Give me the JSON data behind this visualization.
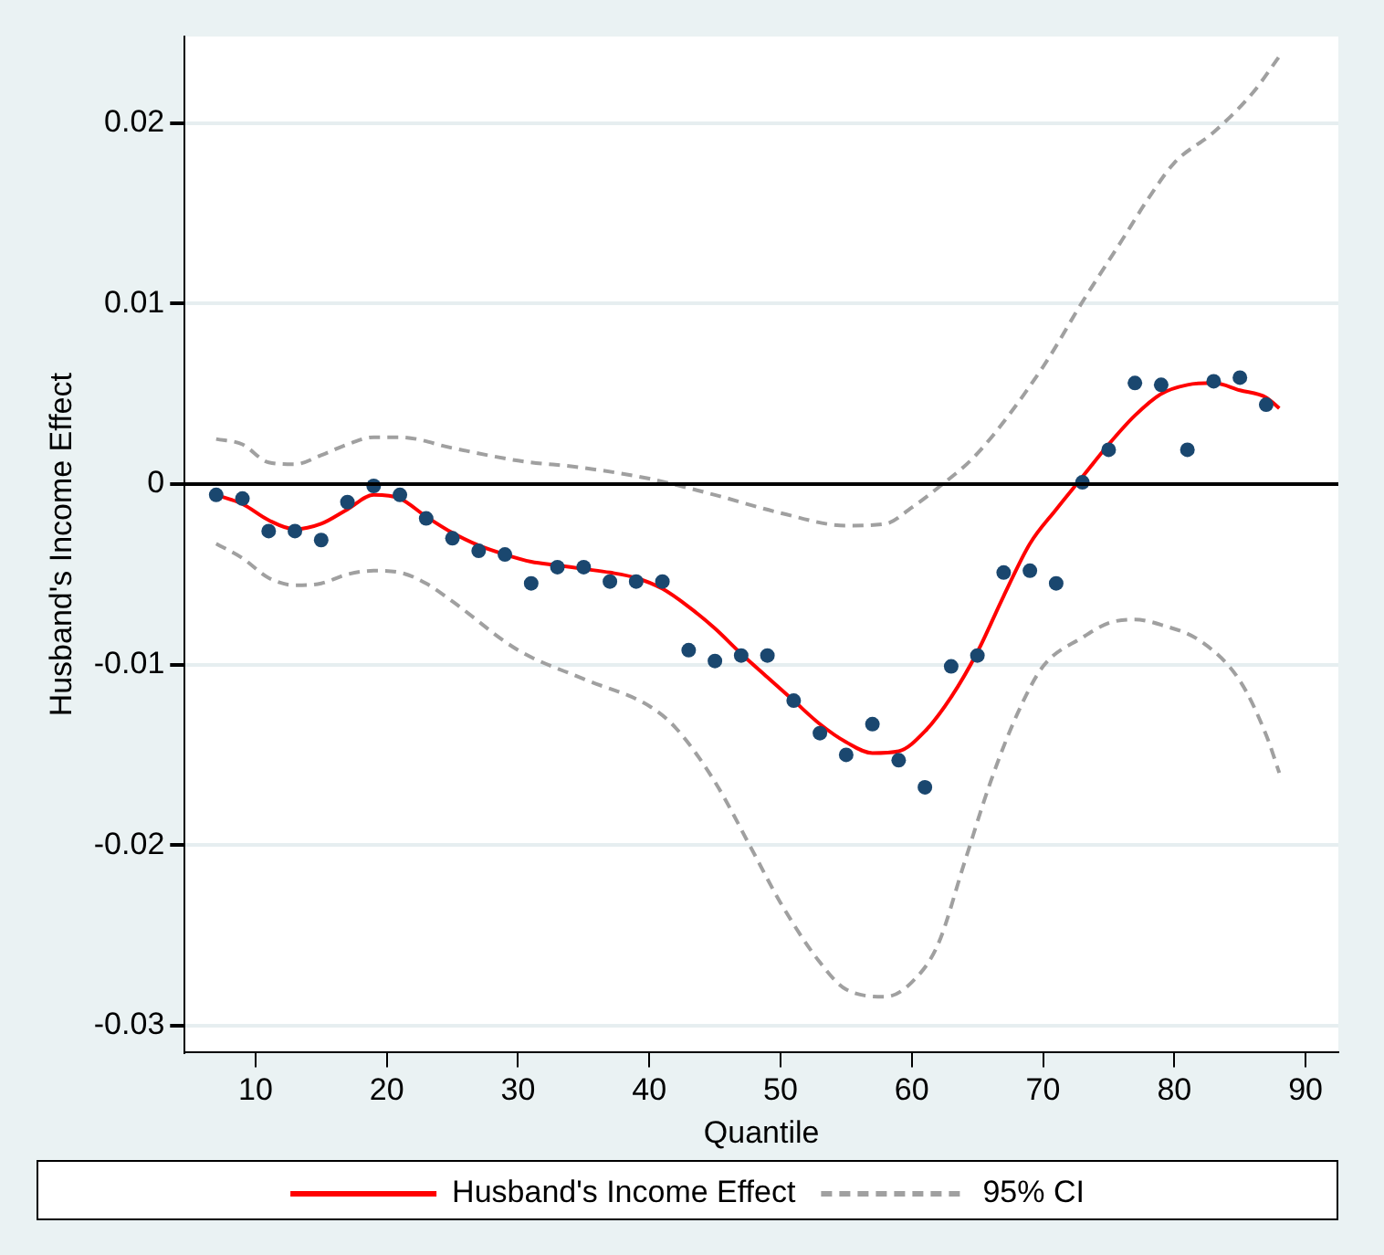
{
  "chart_data": {
    "type": "scatter",
    "xlabel": "Quantile",
    "ylabel": "Husband's Income Effect",
    "xlim": [
      4.6,
      92.5
    ],
    "xticks": [
      10,
      20,
      30,
      40,
      50,
      60,
      70,
      80,
      90
    ],
    "ylim": [
      -0.0315,
      0.0248
    ],
    "yticks": [
      -0.03,
      -0.02,
      -0.01,
      0,
      0.01,
      0.02
    ],
    "grid": "y",
    "legend": "bottom",
    "ref_lines": [
      {
        "axis": "y",
        "value": 0,
        "color": "#000000",
        "line_style": "solid"
      }
    ],
    "series": [
      {
        "type": "scatter",
        "color": "#1a476f",
        "marker": "circle",
        "x": [
          7,
          9,
          11,
          13,
          15,
          17,
          19,
          21,
          23,
          25,
          27,
          29,
          31,
          33,
          35,
          37,
          39,
          41,
          43,
          45,
          47,
          49,
          51,
          53,
          55,
          57,
          59,
          61,
          63,
          65,
          67,
          69,
          71,
          73,
          75,
          77,
          79,
          81,
          83,
          85,
          87
        ],
        "values": [
          -0.0006,
          -0.0008,
          -0.0026,
          -0.0026,
          -0.0031,
          -0.001,
          -0.0001,
          -0.0006,
          -0.0019,
          -0.003,
          -0.0037,
          -0.0039,
          -0.0055,
          -0.0046,
          -0.0046,
          -0.0054,
          -0.0054,
          -0.0054,
          -0.0092,
          -0.0098,
          -0.0095,
          -0.0095,
          -0.012,
          -0.0138,
          -0.015,
          -0.0133,
          -0.0153,
          -0.0168,
          -0.0101,
          -0.0095,
          -0.0049,
          -0.0048,
          -0.0055,
          0.0001,
          0.0019,
          0.0056,
          0.0055,
          0.0019,
          0.0057,
          0.0059,
          0.0044
        ]
      },
      {
        "type": "line",
        "name": "Husband's Income Effect",
        "color": "#ff0000",
        "marker": "none",
        "line_style": "solid",
        "x": [
          7,
          9,
          11,
          13,
          15,
          17,
          19,
          21,
          23,
          25,
          27,
          29,
          31,
          33,
          35,
          37,
          39,
          41,
          43,
          45,
          47,
          49,
          51,
          53,
          55,
          57,
          59,
          61,
          63,
          65,
          67,
          69,
          71,
          73,
          75,
          77,
          79,
          81,
          83,
          85,
          87,
          88
        ],
        "values": [
          -0.0006,
          -0.0011,
          -0.002,
          -0.0025,
          -0.0022,
          -0.0014,
          -0.0006,
          -0.0008,
          -0.0018,
          -0.0027,
          -0.0034,
          -0.0039,
          -0.0043,
          -0.0045,
          -0.0047,
          -0.0049,
          -0.0052,
          -0.0058,
          -0.0068,
          -0.008,
          -0.0094,
          -0.0107,
          -0.012,
          -0.0133,
          -0.0143,
          -0.0149,
          -0.0148,
          -0.0137,
          -0.0118,
          -0.0093,
          -0.0062,
          -0.0033,
          -0.0014,
          0.0004,
          0.0022,
          0.0038,
          0.005,
          0.0055,
          0.0056,
          0.0052,
          0.0048,
          0.0042
        ]
      },
      {
        "type": "line",
        "name": "95% CI",
        "color": "#a0a0a0",
        "marker": "none",
        "line_style": "dashed",
        "x": [
          7,
          9,
          11,
          13,
          15,
          17,
          19,
          21,
          25,
          30,
          35,
          40,
          45,
          50,
          55,
          58,
          60,
          62,
          65,
          70,
          73,
          76,
          78,
          80,
          83,
          86,
          88
        ],
        "values": [
          0.0025,
          0.0022,
          0.0012,
          0.0011,
          0.0016,
          0.0022,
          0.0026,
          0.0026,
          0.002,
          0.0013,
          0.0009,
          0.0003,
          -0.0006,
          -0.0016,
          -0.0023,
          -0.0022,
          -0.0013,
          -0.0002,
          0.0017,
          0.0065,
          0.0101,
          0.0135,
          0.0158,
          0.0178,
          0.0195,
          0.0217,
          0.0237
        ]
      },
      {
        "type": "line",
        "color": "#a0a0a0",
        "marker": "none",
        "line_style": "dashed",
        "x": [
          7,
          9,
          11,
          13,
          15,
          17,
          19,
          21,
          23,
          25,
          30,
          35,
          40,
          42,
          45,
          48,
          50,
          53,
          55,
          58,
          60,
          62,
          64,
          66,
          68,
          70,
          73,
          75,
          77,
          79,
          82,
          85,
          87,
          88
        ],
        "values": [
          -0.0033,
          -0.0041,
          -0.0052,
          -0.0056,
          -0.0055,
          -0.005,
          -0.0048,
          -0.0049,
          -0.0055,
          -0.0065,
          -0.0092,
          -0.0108,
          -0.0123,
          -0.0135,
          -0.0165,
          -0.0205,
          -0.0232,
          -0.0265,
          -0.028,
          -0.0284,
          -0.0276,
          -0.0255,
          -0.021,
          -0.0165,
          -0.0128,
          -0.0101,
          -0.0085,
          -0.0077,
          -0.0075,
          -0.0078,
          -0.0087,
          -0.0109,
          -0.0139,
          -0.016
        ]
      }
    ]
  }
}
